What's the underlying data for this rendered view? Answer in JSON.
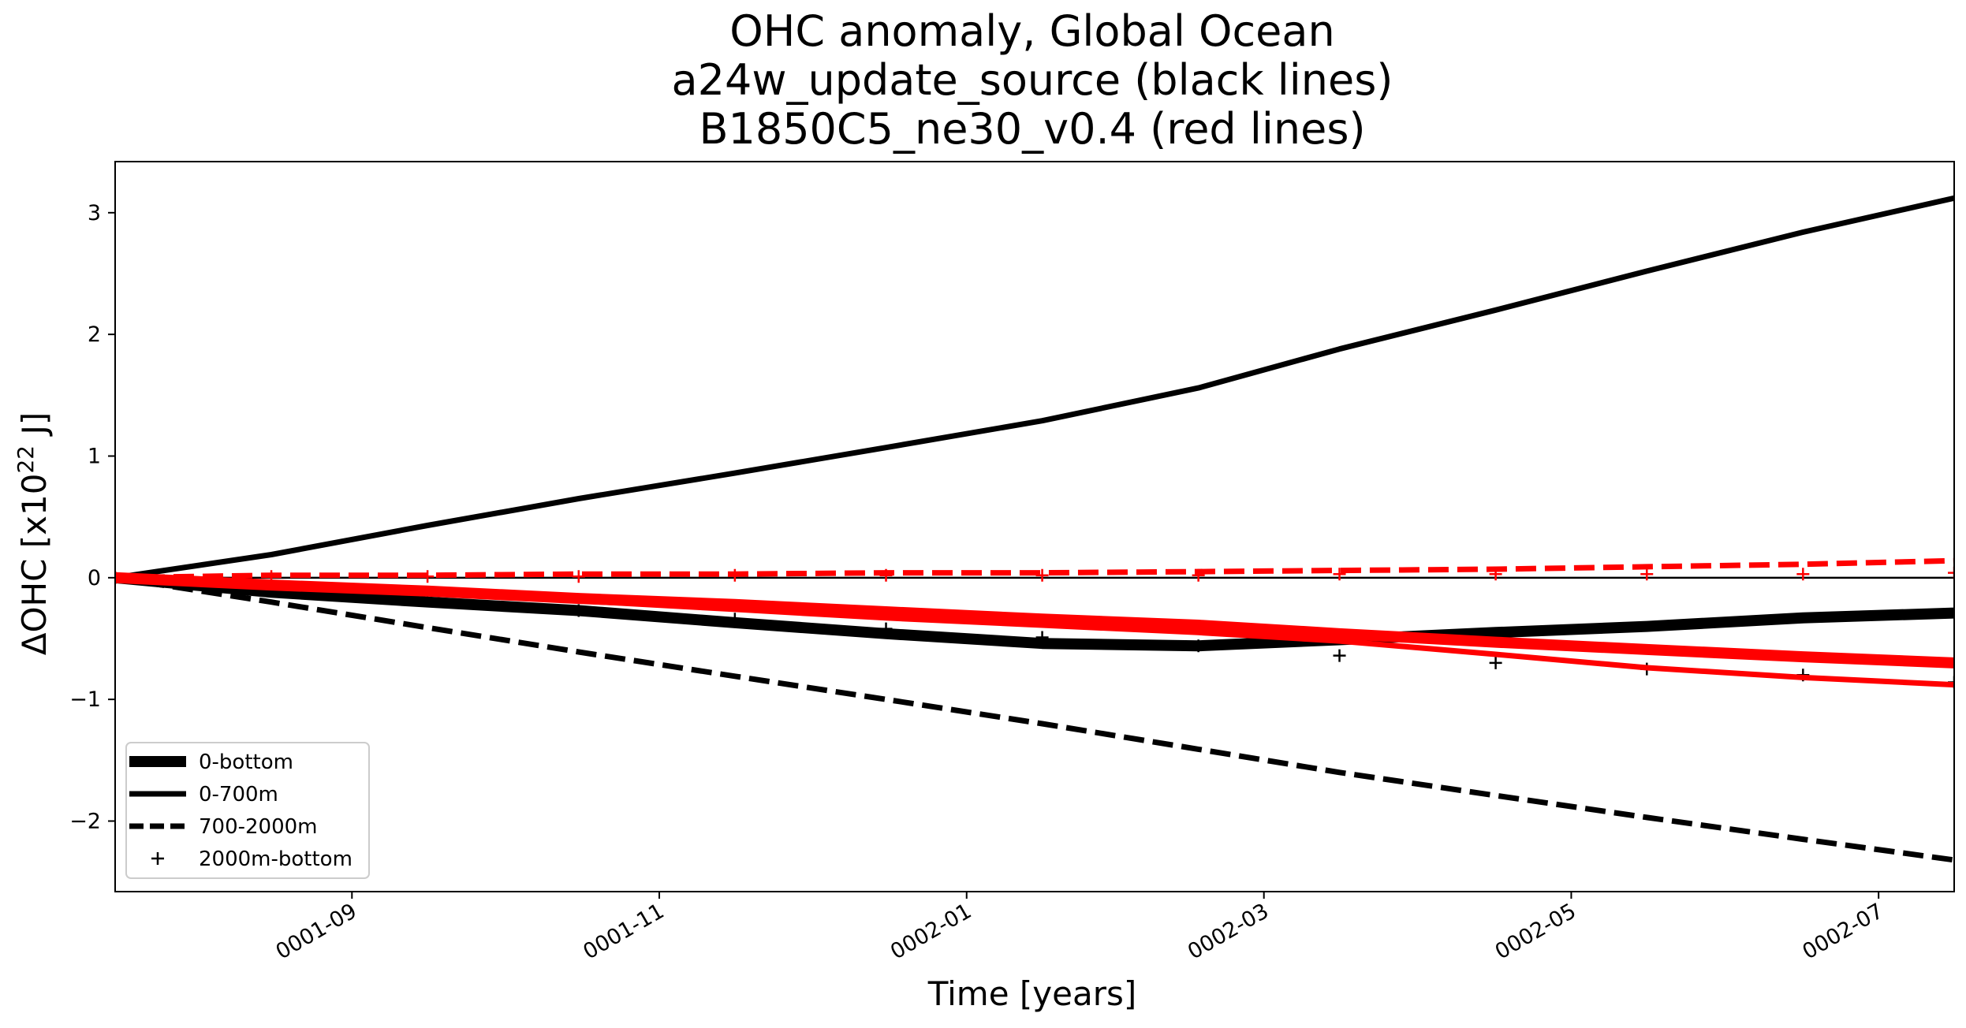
{
  "chart_data": {
    "type": "line",
    "title": [
      "OHC anomaly, Global Ocean",
      "a24w_update_source (black lines)",
      "B1850C5_ne30_v0.4 (red lines)"
    ],
    "xlabel": "Time [years]",
    "ylabel": "ΔOHC  [x10",
    "ylabel_sup": "22",
    "ylabel_tail": " J]",
    "xlim": [
      "0001-07-16",
      "0002-07-16"
    ],
    "ylim": [
      -2.58,
      3.42
    ],
    "x_ticks": [
      "0001-09",
      "0001-11",
      "0002-01",
      "0002-03",
      "0002-05",
      "0002-07"
    ],
    "y_ticks": [
      {
        "value": 3,
        "label": "3"
      },
      {
        "value": 2,
        "label": "2"
      },
      {
        "value": 1,
        "label": "1"
      },
      {
        "value": 0,
        "label": "0"
      },
      {
        "value": -1,
        "label": "−1"
      },
      {
        "value": -2,
        "label": "−2"
      }
    ],
    "zero_line": true,
    "x": [
      "0001-07-16",
      "0001-08-16",
      "0001-09-16",
      "0001-10-16",
      "0001-11-16",
      "0001-12-16",
      "0002-01-16",
      "0002-02-16",
      "0002-03-16",
      "0002-04-16",
      "0002-05-16",
      "0002-06-16",
      "0002-07-16"
    ],
    "series": [
      {
        "name": "0-bottom",
        "model": "a24w_update_source",
        "color": "#000000",
        "style": "thick",
        "values": [
          0.0,
          -0.12,
          -0.2,
          -0.27,
          -0.37,
          -0.46,
          -0.54,
          -0.56,
          -0.51,
          -0.45,
          -0.4,
          -0.33,
          -0.29
        ]
      },
      {
        "name": "0-700m",
        "model": "a24w_update_source",
        "color": "#000000",
        "style": "solid",
        "values": [
          0.0,
          0.19,
          0.43,
          0.65,
          0.86,
          1.07,
          1.29,
          1.56,
          1.88,
          2.2,
          2.52,
          2.84,
          3.12
        ]
      },
      {
        "name": "700-2000m",
        "model": "a24w_update_source",
        "color": "#000000",
        "style": "dashed",
        "values": [
          0.0,
          -0.2,
          -0.41,
          -0.61,
          -0.81,
          -1.0,
          -1.2,
          -1.41,
          -1.6,
          -1.79,
          -1.97,
          -2.15,
          -2.32
        ]
      },
      {
        "name": "2000m-bottom",
        "model": "a24w_update_source",
        "color": "#000000",
        "style": "plus",
        "values": [
          0.0,
          -0.1,
          -0.19,
          -0.27,
          -0.34,
          -0.42,
          -0.49,
          -0.56,
          -0.64,
          -0.7,
          -0.75,
          -0.8,
          -0.86
        ]
      },
      {
        "name": "0-bottom",
        "model": "B1850C5_ne30_v0.4",
        "color": "#ff0000",
        "style": "thick",
        "values": [
          0.0,
          -0.06,
          -0.11,
          -0.17,
          -0.22,
          -0.28,
          -0.34,
          -0.39,
          -0.46,
          -0.53,
          -0.59,
          -0.65,
          -0.7
        ]
      },
      {
        "name": "0-700m",
        "model": "B1850C5_ne30_v0.4",
        "color": "#ff0000",
        "style": "solid",
        "values": [
          0.0,
          -0.07,
          -0.13,
          -0.19,
          -0.26,
          -0.33,
          -0.39,
          -0.45,
          -0.52,
          -0.63,
          -0.74,
          -0.82,
          -0.88
        ]
      },
      {
        "name": "700-2000m",
        "model": "B1850C5_ne30_v0.4",
        "color": "#ff0000",
        "style": "dashed",
        "values": [
          0.0,
          0.02,
          0.02,
          0.03,
          0.03,
          0.04,
          0.04,
          0.05,
          0.06,
          0.07,
          0.09,
          0.11,
          0.14
        ]
      },
      {
        "name": "2000m-bottom",
        "model": "B1850C5_ne30_v0.4",
        "color": "#ff0000",
        "style": "plus",
        "values": [
          0.0,
          0.01,
          0.01,
          0.01,
          0.02,
          0.02,
          0.02,
          0.02,
          0.03,
          0.03,
          0.03,
          0.03,
          0.04
        ]
      }
    ],
    "legend": {
      "placement": "lower-left",
      "entries": [
        {
          "label": "0-bottom",
          "style": "thick"
        },
        {
          "label": "0-700m",
          "style": "solid"
        },
        {
          "label": "700-2000m",
          "style": "dashed"
        },
        {
          "label": "2000m-bottom",
          "style": "plus"
        }
      ]
    },
    "grid": false
  }
}
